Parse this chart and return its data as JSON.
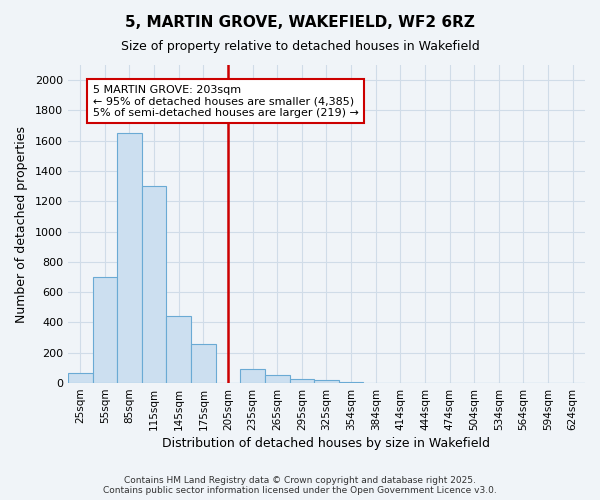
{
  "title": "5, MARTIN GROVE, WAKEFIELD, WF2 6RZ",
  "subtitle": "Size of property relative to detached houses in Wakefield",
  "xlabel": "Distribution of detached houses by size in Wakefield",
  "ylabel": "Number of detached properties",
  "categories": [
    "25sqm",
    "55sqm",
    "85sqm",
    "115sqm",
    "145sqm",
    "175sqm",
    "205sqm",
    "235sqm",
    "265sqm",
    "295sqm",
    "325sqm",
    "354sqm",
    "384sqm",
    "414sqm",
    "444sqm",
    "474sqm",
    "504sqm",
    "534sqm",
    "564sqm",
    "594sqm",
    "624sqm"
  ],
  "values": [
    65,
    700,
    1650,
    1300,
    440,
    260,
    0,
    95,
    55,
    30,
    20,
    5,
    0,
    0,
    0,
    0,
    0,
    0,
    0,
    0,
    0
  ],
  "bar_color": "#ccdff0",
  "bar_edge_color": "#6aaad4",
  "vline_x_idx": 6,
  "vline_color": "#cc0000",
  "annotation_text": "5 MARTIN GROVE: 203sqm\n← 95% of detached houses are smaller (4,385)\n5% of semi-detached houses are larger (219) →",
  "annotation_box_color": "#ffffff",
  "annotation_box_edge_color": "#cc0000",
  "ylim": [
    0,
    2100
  ],
  "yticks": [
    0,
    200,
    400,
    600,
    800,
    1000,
    1200,
    1400,
    1600,
    1800,
    2000
  ],
  "grid_color": "#d0dce8",
  "bg_color": "#f0f4f8",
  "footer": "Contains HM Land Registry data © Crown copyright and database right 2025.\nContains public sector information licensed under the Open Government Licence v3.0."
}
